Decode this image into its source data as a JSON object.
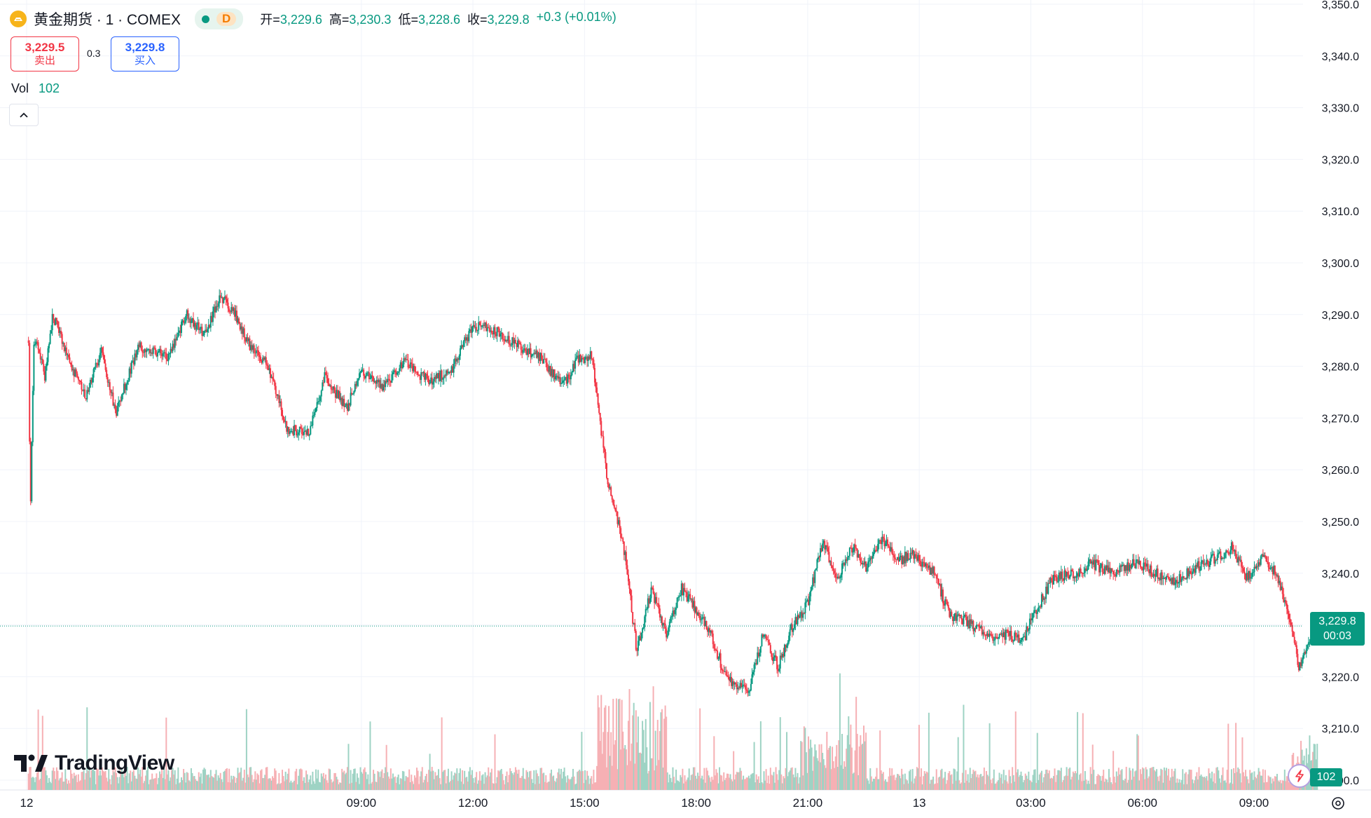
{
  "header": {
    "symbol_title": "黄金期货 · 1 · COMEX",
    "interval_badge": "D",
    "open_label": "开=",
    "open": "3,229.6",
    "high_label": "高=",
    "high": "3,230.3",
    "low_label": "低=",
    "low": "3,228.6",
    "close_label": "收=",
    "close": "3,229.8",
    "change": "+0.3 (+0.01%)"
  },
  "trade": {
    "sell_price": "3,229.5",
    "sell_label": "卖出",
    "spread": "0.3",
    "buy_price": "3,229.8",
    "buy_label": "买入"
  },
  "volume_legend": {
    "label": "Vol",
    "value": "102"
  },
  "watermark": "TradingView",
  "last_price_tag": {
    "price": "3,229.8",
    "countdown": "00:03"
  },
  "volume_tag": "102",
  "colors": {
    "up": "#089981",
    "down": "#f23645",
    "up_vol": "#9ed3c4",
    "down_vol": "#f6b0b4",
    "grid": "#f0f3fa"
  },
  "icons": [
    "gold-futures-icon",
    "status-dot-icon",
    "chevron-up-icon",
    "lightning-icon",
    "settings-icon",
    "tradingview-logo-icon"
  ],
  "chart_data": {
    "type": "candlestick",
    "title": "",
    "ylim": [
      3200,
      3350
    ],
    "y_ticks": [
      "3,200.0",
      "3,210.0",
      "3,220.0",
      "3,230.0",
      "3,240.0",
      "3,250.0",
      "3,260.0",
      "3,270.0",
      "3,280.0",
      "3,290.0",
      "3,300.0",
      "3,310.0",
      "3,320.0",
      "3,330.0",
      "3,340.0",
      "3,350.0"
    ],
    "y_tick_values": [
      3200,
      3210,
      3220,
      3230,
      3240,
      3250,
      3260,
      3270,
      3280,
      3290,
      3300,
      3310,
      3320,
      3330,
      3340,
      3350
    ],
    "x_ticks": [
      "12",
      "09:00",
      "12:00",
      "15:00",
      "18:00",
      "21:00",
      "13",
      "03:00",
      "06:00",
      "09:00"
    ],
    "x_tick_hours": [
      0,
      9,
      12,
      15,
      18,
      21,
      24,
      27,
      30,
      33
    ],
    "x_range_hours": [
      0,
      35.6
    ],
    "last_price": 3229.8,
    "price_path": [
      {
        "h": 0.05,
        "p": 3285
      },
      {
        "h": 0.1,
        "p": 3252
      },
      {
        "h": 0.2,
        "p": 3286
      },
      {
        "h": 0.5,
        "p": 3278
      },
      {
        "h": 0.7,
        "p": 3290
      },
      {
        "h": 1.2,
        "p": 3280
      },
      {
        "h": 1.6,
        "p": 3274
      },
      {
        "h": 2.0,
        "p": 3283
      },
      {
        "h": 2.4,
        "p": 3271
      },
      {
        "h": 3.0,
        "p": 3284
      },
      {
        "h": 3.8,
        "p": 3282
      },
      {
        "h": 4.3,
        "p": 3290
      },
      {
        "h": 4.8,
        "p": 3286
      },
      {
        "h": 5.2,
        "p": 3294
      },
      {
        "h": 5.6,
        "p": 3290
      },
      {
        "h": 6.0,
        "p": 3284
      },
      {
        "h": 6.5,
        "p": 3280
      },
      {
        "h": 7.0,
        "p": 3268
      },
      {
        "h": 7.6,
        "p": 3267
      },
      {
        "h": 8.0,
        "p": 3278
      },
      {
        "h": 8.6,
        "p": 3272
      },
      {
        "h": 9.0,
        "p": 3279
      },
      {
        "h": 9.6,
        "p": 3276
      },
      {
        "h": 10.2,
        "p": 3281
      },
      {
        "h": 10.8,
        "p": 3277
      },
      {
        "h": 11.4,
        "p": 3279
      },
      {
        "h": 12.0,
        "p": 3288
      },
      {
        "h": 12.6,
        "p": 3287
      },
      {
        "h": 13.2,
        "p": 3284
      },
      {
        "h": 13.8,
        "p": 3282
      },
      {
        "h": 14.4,
        "p": 3276
      },
      {
        "h": 14.8,
        "p": 3281
      },
      {
        "h": 15.2,
        "p": 3282
      },
      {
        "h": 15.4,
        "p": 3270
      },
      {
        "h": 15.6,
        "p": 3259
      },
      {
        "h": 15.9,
        "p": 3250
      },
      {
        "h": 16.1,
        "p": 3243
      },
      {
        "h": 16.4,
        "p": 3225
      },
      {
        "h": 16.8,
        "p": 3237
      },
      {
        "h": 17.2,
        "p": 3228
      },
      {
        "h": 17.6,
        "p": 3237
      },
      {
        "h": 18.0,
        "p": 3233
      },
      {
        "h": 18.4,
        "p": 3228
      },
      {
        "h": 18.8,
        "p": 3220
      },
      {
        "h": 19.4,
        "p": 3217
      },
      {
        "h": 19.8,
        "p": 3228
      },
      {
        "h": 20.2,
        "p": 3222
      },
      {
        "h": 20.6,
        "p": 3230
      },
      {
        "h": 21.0,
        "p": 3234
      },
      {
        "h": 21.4,
        "p": 3246
      },
      {
        "h": 21.8,
        "p": 3239
      },
      {
        "h": 22.2,
        "p": 3245
      },
      {
        "h": 22.6,
        "p": 3241
      },
      {
        "h": 23.0,
        "p": 3247
      },
      {
        "h": 23.4,
        "p": 3242
      },
      {
        "h": 23.8,
        "p": 3244
      },
      {
        "h": 24.4,
        "p": 3240
      },
      {
        "h": 24.8,
        "p": 3232
      },
      {
        "h": 25.2,
        "p": 3231
      },
      {
        "h": 25.8,
        "p": 3228
      },
      {
        "h": 26.4,
        "p": 3228
      },
      {
        "h": 26.8,
        "p": 3227
      },
      {
        "h": 27.0,
        "p": 3231
      },
      {
        "h": 27.6,
        "p": 3239
      },
      {
        "h": 28.2,
        "p": 3240
      },
      {
        "h": 28.6,
        "p": 3242
      },
      {
        "h": 29.2,
        "p": 3240
      },
      {
        "h": 29.8,
        "p": 3242
      },
      {
        "h": 30.4,
        "p": 3240
      },
      {
        "h": 30.8,
        "p": 3238
      },
      {
        "h": 31.4,
        "p": 3241
      },
      {
        "h": 32.0,
        "p": 3243
      },
      {
        "h": 32.4,
        "p": 3245
      },
      {
        "h": 32.8,
        "p": 3239
      },
      {
        "h": 33.2,
        "p": 3243
      },
      {
        "h": 33.6,
        "p": 3240
      },
      {
        "h": 33.9,
        "p": 3233
      },
      {
        "h": 34.2,
        "p": 3222
      },
      {
        "h": 34.5,
        "p": 3227
      },
      {
        "h": 34.7,
        "p": 3229.8
      }
    ]
  }
}
